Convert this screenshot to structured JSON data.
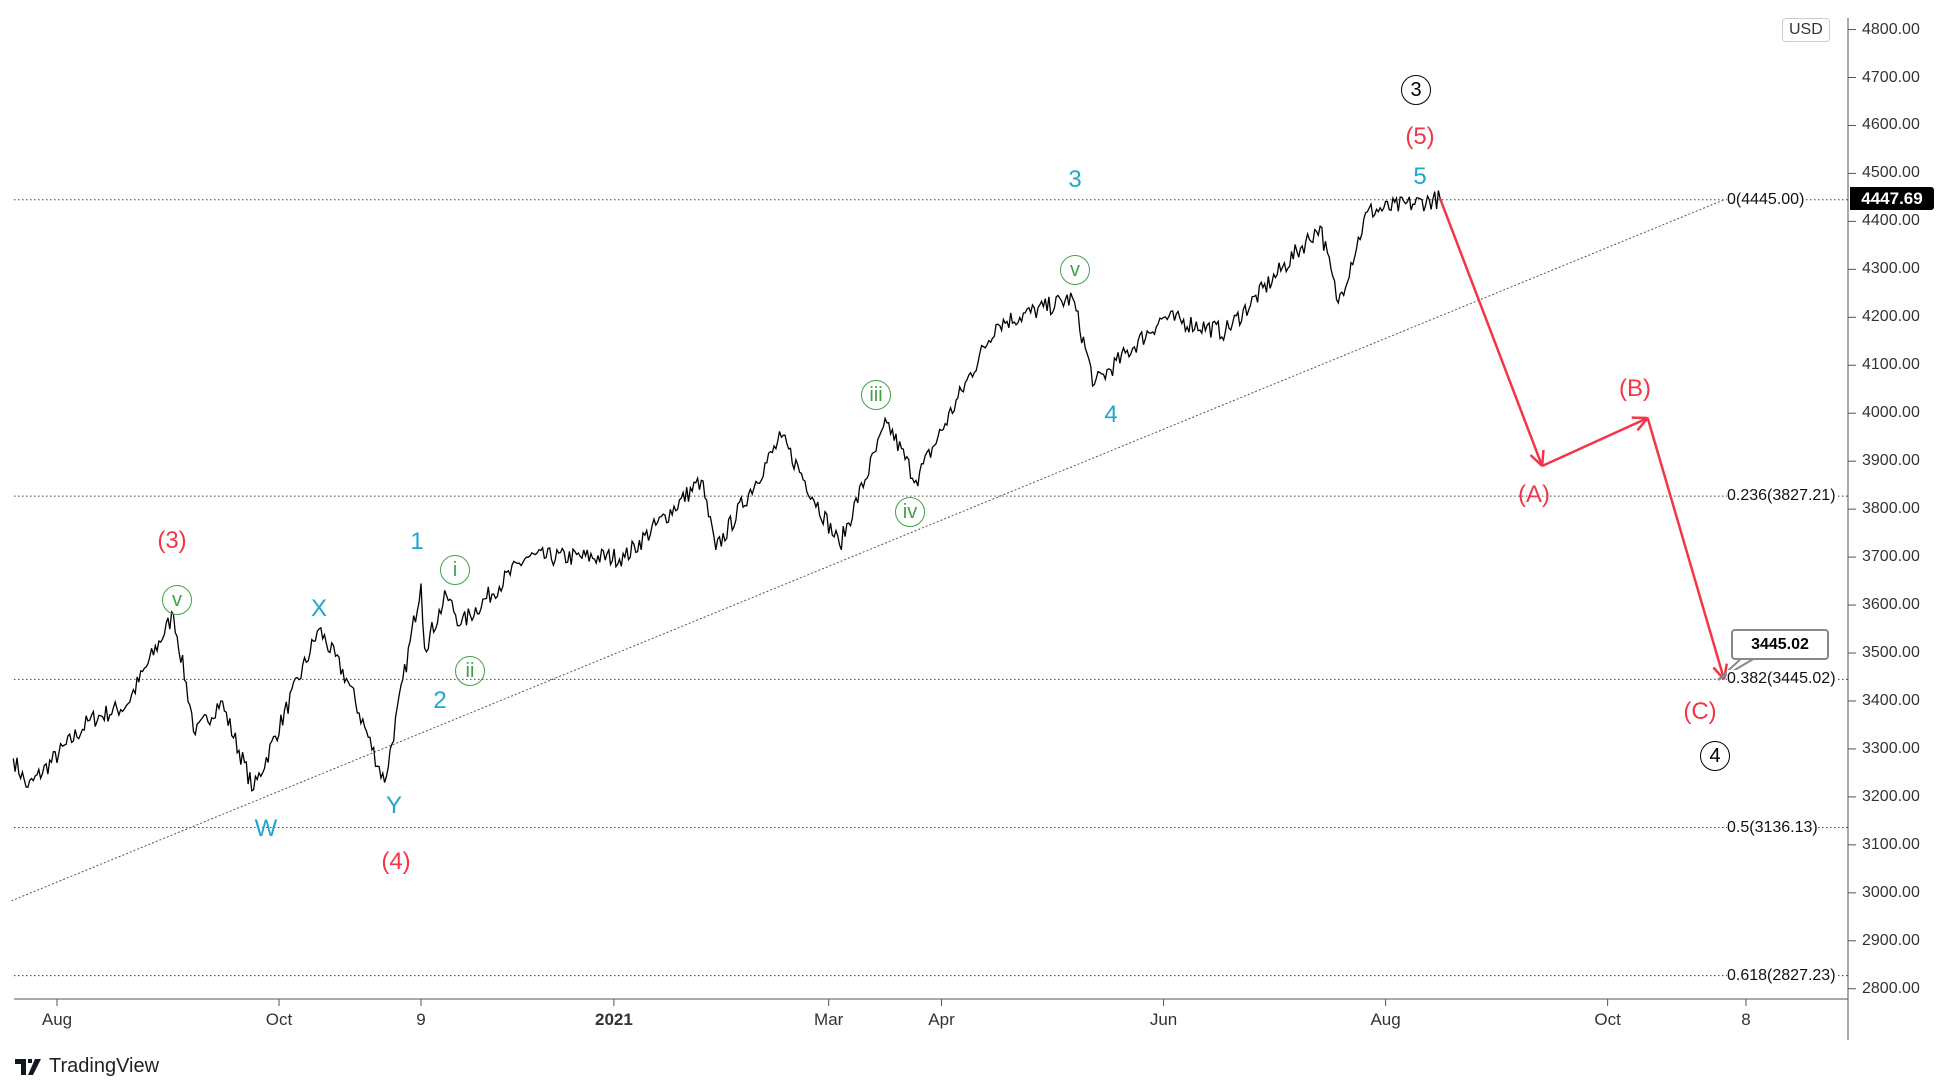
{
  "chart_data": {
    "type": "line",
    "instrument_currency": "USD",
    "last_price": "4447.69",
    "ylim": [
      2780,
      4820
    ],
    "y_ticks": [
      "4800.00",
      "4700.00",
      "4600.00",
      "4500.00",
      "4400.00",
      "4300.00",
      "4200.00",
      "4100.00",
      "4000.00",
      "3900.00",
      "3800.00",
      "3700.00",
      "3600.00",
      "3500.00",
      "3400.00",
      "3300.00",
      "3200.00",
      "3100.00",
      "3000.00",
      "2900.00",
      "2800.00"
    ],
    "x_ticks": [
      {
        "label": "Aug",
        "date": "2020-08-01"
      },
      {
        "label": "Oct",
        "date": "2020-10-01"
      },
      {
        "label": "9",
        "date": "2020-11-09"
      },
      {
        "label": "2021",
        "date": "2021-01-01"
      },
      {
        "label": "Mar",
        "date": "2021-03-01"
      },
      {
        "label": "Apr",
        "date": "2021-04-01"
      },
      {
        "label": "Jun",
        "date": "2021-06-01"
      },
      {
        "label": "Aug",
        "date": "2021-08-01"
      },
      {
        "label": "Oct",
        "date": "2021-10-01"
      },
      {
        "label": "8",
        "date": "2021-11-08"
      }
    ],
    "price_pivots": [
      [
        "2020-07-20",
        3280
      ],
      [
        "2020-07-24",
        3220
      ],
      [
        "2020-08-10",
        3360
      ],
      [
        "2020-08-20",
        3390
      ],
      [
        "2020-09-02",
        3580
      ],
      [
        "2020-09-08",
        3330
      ],
      [
        "2020-09-15",
        3400
      ],
      [
        "2020-09-24",
        3215
      ],
      [
        "2020-10-12",
        3550
      ],
      [
        "2020-10-20",
        3440
      ],
      [
        "2020-10-30",
        3230
      ],
      [
        "2020-11-09",
        3645
      ],
      [
        "2020-11-10",
        3510
      ],
      [
        "2020-11-16",
        3620
      ],
      [
        "2020-11-20",
        3560
      ],
      [
        "2020-12-08",
        3700
      ],
      [
        "2021-01-04",
        3700
      ],
      [
        "2021-01-25",
        3860
      ],
      [
        "2021-01-29",
        3715
      ],
      [
        "2021-02-16",
        3950
      ],
      [
        "2021-03-04",
        3725
      ],
      [
        "2021-03-17",
        3980
      ],
      [
        "2021-03-25",
        3860
      ],
      [
        "2021-04-16",
        4185
      ],
      [
        "2021-05-07",
        4240
      ],
      [
        "2021-05-13",
        4060
      ],
      [
        "2021-06-01",
        4200
      ],
      [
        "2021-06-18",
        4170
      ],
      [
        "2021-07-14",
        4390
      ],
      [
        "2021-07-19",
        4230
      ],
      [
        "2021-07-27",
        4420
      ],
      [
        "2021-08-16",
        4447
      ]
    ],
    "projection": [
      [
        "2021-08-16",
        4447
      ],
      [
        "2021-09-13",
        3890
      ],
      [
        "2021-10-12",
        3990
      ],
      [
        "2021-11-02",
        3445
      ]
    ],
    "trendline": [
      [
        "2020-07-20",
        3000
      ],
      [
        "2021-11-02",
        4445
      ]
    ],
    "fib_levels": [
      {
        "label": "0(4445.00)",
        "value": 4445.0
      },
      {
        "label": "0.236(3827.21)",
        "value": 3827.21
      },
      {
        "label": "0.382(3445.02)",
        "value": 3445.02
      },
      {
        "label": "0.5(3136.13)",
        "value": 3136.13
      },
      {
        "label": "0.618(2827.23)",
        "value": 2827.23
      }
    ],
    "target_callout": "3445.02",
    "wave_labels": [
      {
        "text": "(3)",
        "color": "red"
      },
      {
        "text": "v",
        "color": "green"
      },
      {
        "text": "X",
        "color": "cyan"
      },
      {
        "text": "W",
        "color": "cyan"
      },
      {
        "text": "Y",
        "color": "cyan"
      },
      {
        "text": "(4)",
        "color": "red"
      },
      {
        "text": "1",
        "color": "cyan"
      },
      {
        "text": "i",
        "color": "green"
      },
      {
        "text": "ii",
        "color": "green"
      },
      {
        "text": "2",
        "color": "cyan"
      },
      {
        "text": "iii",
        "color": "green"
      },
      {
        "text": "iv",
        "color": "green"
      },
      {
        "text": "v",
        "color": "green"
      },
      {
        "text": "3",
        "color": "cyan"
      },
      {
        "text": "4",
        "color": "cyan"
      },
      {
        "text": "5",
        "color": "cyan"
      },
      {
        "text": "(5)",
        "color": "red"
      },
      {
        "text": "3",
        "color": "black"
      },
      {
        "text": "(A)",
        "color": "red"
      },
      {
        "text": "(B)",
        "color": "red"
      },
      {
        "text": "(C)",
        "color": "red"
      },
      {
        "text": "4",
        "color": "black"
      }
    ],
    "colors": {
      "red": "#f23645",
      "cyan": "#1ea6cf",
      "green": "#43a047",
      "black": "#000000"
    }
  },
  "branding": "TradingView"
}
